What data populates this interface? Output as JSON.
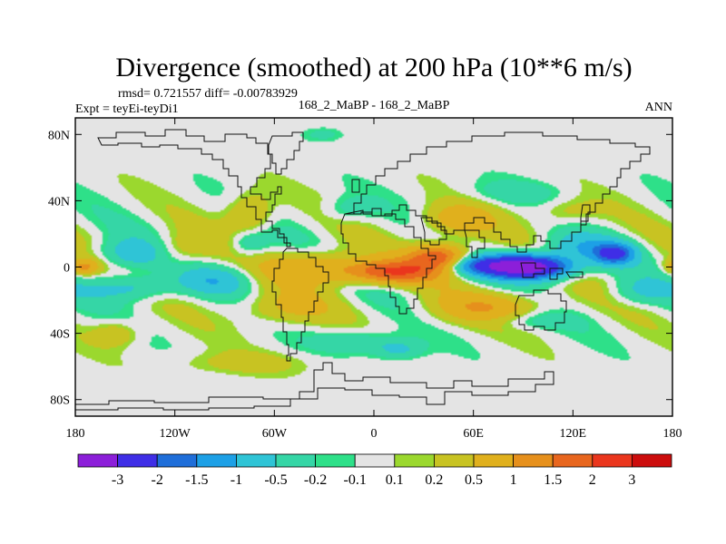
{
  "chart_data": {
    "type": "heatmap",
    "title": "Divergence (smoothed) at 200 hPa (10**6 m/s)",
    "stats_line": "rmsd= 0.721557 diff= -0.00783929",
    "left_label": "Expt = teyEi-teyDi1",
    "center_label": "168_2_MaBP - 168_2_MaBP",
    "right_label": "ANN",
    "x_ticks": [
      {
        "label": "180",
        "value": -180
      },
      {
        "label": "120W",
        "value": -120
      },
      {
        "label": "60W",
        "value": -60
      },
      {
        "label": "0",
        "value": 0
      },
      {
        "label": "60E",
        "value": 60
      },
      {
        "label": "120E",
        "value": 120
      },
      {
        "label": "180",
        "value": 180
      }
    ],
    "y_ticks": [
      {
        "label": "80N",
        "value": 80
      },
      {
        "label": "40N",
        "value": 40
      },
      {
        "label": "0",
        "value": 0
      },
      {
        "label": "40S",
        "value": -40
      },
      {
        "label": "80S",
        "value": -80
      }
    ],
    "xlim": [
      -180,
      180
    ],
    "ylim": [
      -90,
      90
    ],
    "colorbar": {
      "labels": [
        "-3",
        "-2",
        "-1.5",
        "-1",
        "-0.5",
        "-0.2",
        "-0.1",
        "0.1",
        "0.2",
        "0.5",
        "1",
        "1.5",
        "2",
        "3"
      ],
      "levels": [
        -3,
        -2,
        -1.5,
        -1,
        -0.5,
        -0.2,
        -0.1,
        0.1,
        0.2,
        0.5,
        1,
        1.5,
        2,
        3
      ],
      "colors": [
        "#8c1fd9",
        "#3f2ee6",
        "#1f6ed9",
        "#1da0e6",
        "#2fc4d6",
        "#35d6a6",
        "#2ee089",
        "#e4e4e4",
        "#9bd82e",
        "#c8c322",
        "#e0b01d",
        "#e6901c",
        "#e8661e",
        "#ea361d",
        "#cc0d0d"
      ]
    },
    "field_features": [
      {
        "lon": 95,
        "lat": 0,
        "value": -3.4,
        "width_deg": 24,
        "height_deg": 7
      },
      {
        "lon": 65,
        "lat": 1,
        "value": -1.8,
        "width_deg": 30,
        "height_deg": 6
      },
      {
        "lon": 145,
        "lat": 8,
        "value": -2.0,
        "width_deg": 12,
        "height_deg": 6
      },
      {
        "lon": 125,
        "lat": 12,
        "value": -0.8,
        "width_deg": 22,
        "height_deg": 8
      },
      {
        "lon": -145,
        "lat": 8,
        "value": -0.9,
        "width_deg": 22,
        "height_deg": 9
      },
      {
        "lon": -145,
        "lat": -12,
        "value": -0.8,
        "width_deg": 26,
        "height_deg": 8
      },
      {
        "lon": -95,
        "lat": -8,
        "value": -0.7,
        "width_deg": 20,
        "height_deg": 8
      },
      {
        "lon": -75,
        "lat": 14,
        "value": -0.6,
        "width_deg": 12,
        "height_deg": 8
      },
      {
        "lon": -15,
        "lat": 35,
        "value": -0.4,
        "width_deg": 15,
        "height_deg": 7
      },
      {
        "lon": 160,
        "lat": -15,
        "value": -0.5,
        "width_deg": 18,
        "height_deg": 8
      },
      {
        "lon": -10,
        "lat": -45,
        "value": -0.5,
        "width_deg": 25,
        "height_deg": 7
      },
      {
        "lon": 15,
        "lat": -50,
        "value": -0.6,
        "width_deg": 15,
        "height_deg": 6
      },
      {
        "lon": 90,
        "lat": -32,
        "value": -0.5,
        "width_deg": 28,
        "height_deg": 6
      },
      {
        "lon": 40,
        "lat": 5,
        "value": 2.3,
        "width_deg": 18,
        "height_deg": 8
      },
      {
        "lon": 10,
        "lat": -3,
        "value": 1.9,
        "width_deg": 28,
        "height_deg": 7
      },
      {
        "lon": -35,
        "lat": 0,
        "value": 1.0,
        "width_deg": 28,
        "height_deg": 10
      },
      {
        "lon": 50,
        "lat": 28,
        "value": 0.8,
        "width_deg": 22,
        "height_deg": 10
      },
      {
        "lon": -75,
        "lat": 32,
        "value": 0.7,
        "width_deg": 14,
        "height_deg": 12
      },
      {
        "lon": -120,
        "lat": 10,
        "value": 0.6,
        "width_deg": 20,
        "height_deg": 10
      },
      {
        "lon": 70,
        "lat": -25,
        "value": 0.9,
        "width_deg": 35,
        "height_deg": 10
      },
      {
        "lon": -55,
        "lat": -25,
        "value": 0.6,
        "width_deg": 28,
        "height_deg": 10
      },
      {
        "lon": -155,
        "lat": -40,
        "value": 0.5,
        "width_deg": 15,
        "height_deg": 8
      },
      {
        "lon": 115,
        "lat": 33,
        "value": 0.4,
        "width_deg": 20,
        "height_deg": 8
      },
      {
        "lon": -175,
        "lat": 0,
        "value": 1.1,
        "width_deg": 9,
        "height_deg": 5
      },
      {
        "lon": -80,
        "lat": -58,
        "value": 0.3,
        "width_deg": 45,
        "height_deg": 7
      },
      {
        "lon": -30,
        "lat": 80,
        "value": -0.3,
        "width_deg": 12,
        "height_deg": 4
      },
      {
        "lon": 85,
        "lat": 45,
        "value": -0.3,
        "width_deg": 30,
        "height_deg": 7
      }
    ]
  }
}
